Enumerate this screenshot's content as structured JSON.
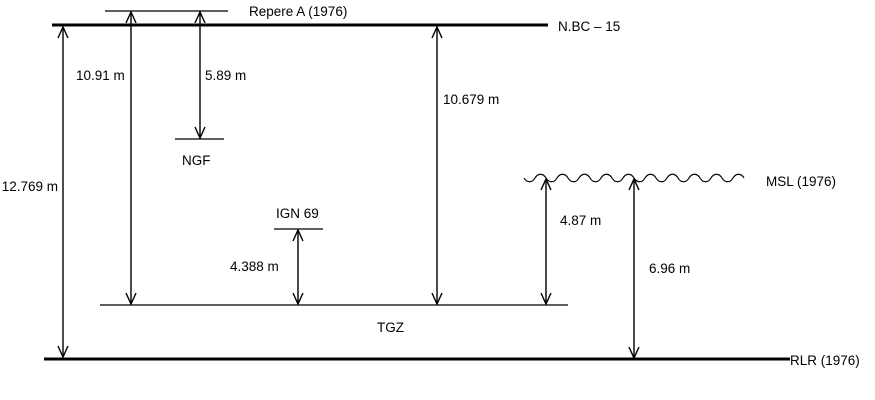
{
  "levels": {
    "repere_a": "Repere A (1976)",
    "nbc15": "N.BC – 15",
    "ngf": "NGF",
    "ign69": "IGN 69",
    "msl": "MSL (1976)",
    "tgz": "TGZ",
    "rlr": "RLR (1976)"
  },
  "measurements": {
    "m_12_769": "12.769 m",
    "m_10_91": "10.91 m",
    "m_5_89": "5.89 m",
    "m_10_679": "10.679 m",
    "m_4_388": "4.388 m",
    "m_4_87": "4.87 m",
    "m_6_96": "6.96 m"
  }
}
